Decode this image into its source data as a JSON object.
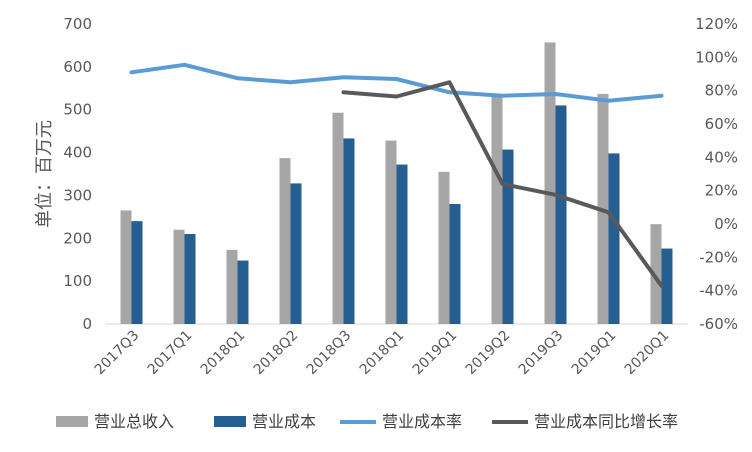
{
  "chart_data": {
    "type": "bar+line",
    "categories": [
      "2017Q3",
      "2017Q1",
      "2018Q1",
      "2018Q2",
      "2018Q3",
      "2018Q1",
      "2019Q1",
      "2019Q2",
      "2019Q3",
      "2019Q1",
      "2020Q1"
    ],
    "ylabel": "单位：百万元",
    "ylim": [
      0,
      700
    ],
    "yticks": [
      "0",
      "100",
      "200",
      "300",
      "400",
      "500",
      "600",
      "700"
    ],
    "y2lim": [
      -0.6,
      1.2
    ],
    "y2ticks": [
      "-60%",
      "-40%",
      "-20%",
      "0%",
      "20%",
      "40%",
      "60%",
      "80%",
      "100%",
      "120%"
    ],
    "bar_series": [
      {
        "name": "营业总收入",
        "color": "#a6a6a6",
        "values": [
          265,
          220,
          173,
          387,
          493,
          428,
          355,
          530,
          657,
          537,
          233
        ]
      },
      {
        "name": "营业成本",
        "color": "#255e91",
        "values": [
          240,
          210,
          148,
          328,
          433,
          372,
          280,
          407,
          510,
          398,
          176
        ]
      }
    ],
    "line_series": [
      {
        "name": "营业成本率",
        "color": "#5b9bd5",
        "values": [
          0.91,
          0.955,
          0.875,
          0.85,
          0.88,
          0.87,
          0.79,
          0.77,
          0.78,
          0.74,
          0.77
        ]
      },
      {
        "name": "营业成本同比增长率",
        "color": "#595959",
        "values": [
          null,
          null,
          null,
          null,
          0.79,
          0.765,
          0.85,
          0.24,
          0.175,
          0.07,
          -0.37
        ]
      }
    ],
    "legend_position": "bottom",
    "grid": false
  }
}
